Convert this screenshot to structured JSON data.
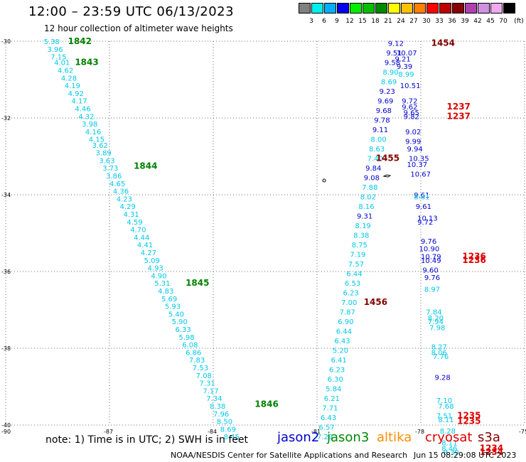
{
  "header": {
    "title": "12:00 – 23:59 UTC 06/13/2023",
    "subtitle": "12 hour collection of altimeter wave heights"
  },
  "color_scale": {
    "unit": "(ft)",
    "bins": [
      {
        "label": "3",
        "color": "#808080"
      },
      {
        "label": "6",
        "color": "#00eeee"
      },
      {
        "label": "9",
        "color": "#00b0ff"
      },
      {
        "label": "12",
        "color": "#0000ee"
      },
      {
        "label": "15",
        "color": "#00ee00"
      },
      {
        "label": "18",
        "color": "#00c000"
      },
      {
        "label": "21",
        "color": "#008800"
      },
      {
        "label": "24",
        "color": "#ffff00"
      },
      {
        "label": "27",
        "color": "#ffc000"
      },
      {
        "label": "30",
        "color": "#ff8000"
      },
      {
        "label": "33",
        "color": "#ff0000"
      },
      {
        "label": "36",
        "color": "#c00000"
      },
      {
        "label": "39",
        "color": "#880000"
      },
      {
        "label": "42",
        "color": "#b040b0"
      },
      {
        "label": "45",
        "color": "#d090e0"
      },
      {
        "label": "70",
        "color": "#eeaaee"
      },
      {
        "label": "",
        "color": "#000000"
      }
    ]
  },
  "map": {
    "lat_labels": [
      "-30",
      "-32",
      "-34",
      "-36",
      "-38",
      "-40"
    ],
    "lon_labels": [
      "-90",
      "-87",
      "-84",
      "-81",
      "-78",
      "-75"
    ],
    "colors": {
      "cyan": "#00c8e8",
      "blue": "#0000cc",
      "green": "#008000",
      "red": "#dd0000",
      "darkred": "#800000"
    }
  },
  "chart_data": {
    "type": "scatter",
    "title": "12:00 – 23:59 UTC 06/13/2023",
    "xlim": [
      -90,
      -75
    ],
    "ylim": [
      -40,
      -30
    ],
    "tracks": [
      {
        "mission": "jason3",
        "points": [
          {
            "lon": -88.9,
            "lat": -30.0,
            "swh": "5.38"
          },
          {
            "lon": -88.8,
            "lat": -30.2,
            "swh": "3.96"
          },
          {
            "lon": -88.7,
            "lat": -30.4,
            "swh": "7.15"
          },
          {
            "lon": -88.6,
            "lat": -30.55,
            "swh": "4.01"
          },
          {
            "lon": -88.5,
            "lat": -30.75,
            "swh": "4.62"
          },
          {
            "lon": -88.4,
            "lat": -30.95,
            "swh": "4.28"
          },
          {
            "lon": -88.3,
            "lat": -31.15,
            "swh": "4.19"
          },
          {
            "lon": -88.2,
            "lat": -31.35,
            "swh": "4.92"
          },
          {
            "lon": -88.1,
            "lat": -31.55,
            "swh": "4.17"
          },
          {
            "lon": -88.0,
            "lat": -31.75,
            "swh": "4.46"
          },
          {
            "lon": -87.9,
            "lat": -31.95,
            "swh": "4.32"
          },
          {
            "lon": -87.8,
            "lat": -32.15,
            "swh": "3.98"
          },
          {
            "lon": -87.7,
            "lat": -32.35,
            "swh": "4.16"
          },
          {
            "lon": -87.6,
            "lat": -32.55,
            "swh": "4.15"
          },
          {
            "lon": -87.5,
            "lat": -32.7,
            "swh": "3.62"
          },
          {
            "lon": -87.4,
            "lat": -32.9,
            "swh": "3.89"
          },
          {
            "lon": -87.3,
            "lat": -33.1,
            "swh": "3.63"
          },
          {
            "lon": -87.2,
            "lat": -33.3,
            "swh": "3.73"
          },
          {
            "lon": -87.1,
            "lat": -33.5,
            "swh": "3.86"
          },
          {
            "lon": -87.0,
            "lat": -33.7,
            "swh": "4.65"
          },
          {
            "lon": -86.9,
            "lat": -33.9,
            "swh": "4.36"
          },
          {
            "lon": -86.8,
            "lat": -34.1,
            "swh": "4.23"
          },
          {
            "lon": -86.7,
            "lat": -34.3,
            "swh": "4.29"
          },
          {
            "lon": -86.6,
            "lat": -34.5,
            "swh": "4.31"
          },
          {
            "lon": -86.5,
            "lat": -34.7,
            "swh": "4.59"
          },
          {
            "lon": -86.4,
            "lat": -34.9,
            "swh": "4.70"
          },
          {
            "lon": -86.3,
            "lat": -35.1,
            "swh": "4.44"
          },
          {
            "lon": -86.2,
            "lat": -35.3,
            "swh": "4.41"
          },
          {
            "lon": -86.1,
            "lat": -35.5,
            "swh": "4.27"
          },
          {
            "lon": -86.0,
            "lat": -35.7,
            "swh": "5.09"
          },
          {
            "lon": -85.9,
            "lat": -35.9,
            "swh": "4.93"
          },
          {
            "lon": -85.8,
            "lat": -36.1,
            "swh": "4.90"
          },
          {
            "lon": -85.7,
            "lat": -36.3,
            "swh": "5.31"
          },
          {
            "lon": -85.6,
            "lat": -36.5,
            "swh": "4.83"
          },
          {
            "lon": -85.5,
            "lat": -36.7,
            "swh": "5.69"
          },
          {
            "lon": -85.4,
            "lat": -36.9,
            "swh": "5.93"
          },
          {
            "lon": -85.3,
            "lat": -37.1,
            "swh": "5.40"
          },
          {
            "lon": -85.2,
            "lat": -37.3,
            "swh": "5.90"
          },
          {
            "lon": -85.1,
            "lat": -37.5,
            "swh": "6.33"
          },
          {
            "lon": -85.0,
            "lat": -37.7,
            "swh": "5.98"
          },
          {
            "lon": -84.9,
            "lat": -37.9,
            "swh": "6.08"
          },
          {
            "lon": -84.8,
            "lat": -38.1,
            "swh": "6.86"
          },
          {
            "lon": -84.7,
            "lat": -38.3,
            "swh": "7.83"
          },
          {
            "lon": -84.6,
            "lat": -38.5,
            "swh": "7.53"
          },
          {
            "lon": -84.5,
            "lat": -38.7,
            "swh": "7.08"
          },
          {
            "lon": -84.4,
            "lat": -38.9,
            "swh": "7.31"
          },
          {
            "lon": -84.3,
            "lat": -39.1,
            "swh": "7.17"
          },
          {
            "lon": -84.2,
            "lat": -39.3,
            "swh": "7.34"
          },
          {
            "lon": -84.1,
            "lat": -39.5,
            "swh": "8.38"
          },
          {
            "lon": -84.0,
            "lat": -39.7,
            "swh": "7.96"
          },
          {
            "lon": -83.9,
            "lat": -39.9,
            "swh": "8.50"
          },
          {
            "lon": -83.8,
            "lat": -40.1,
            "swh": "8.69"
          },
          {
            "lon": -83.7,
            "lat": -40.3,
            "swh": "8.45"
          }
        ]
      },
      {
        "mission": "jason3",
        "points": [
          {
            "lon": -81.0,
            "lat": -40.3,
            "swh": "7.29"
          },
          {
            "lon": -80.95,
            "lat": -40.05,
            "swh": "6.57"
          },
          {
            "lon": -80.9,
            "lat": -39.8,
            "swh": "6.43"
          },
          {
            "lon": -80.85,
            "lat": -39.55,
            "swh": "7.71"
          },
          {
            "lon": -80.8,
            "lat": -39.3,
            "swh": "6.21"
          },
          {
            "lon": -80.75,
            "lat": -39.05,
            "swh": "5.84"
          },
          {
            "lon": -80.7,
            "lat": -38.8,
            "swh": "6.30"
          },
          {
            "lon": -80.65,
            "lat": -38.55,
            "swh": "6.23"
          },
          {
            "lon": -80.6,
            "lat": -38.3,
            "swh": "6.41"
          },
          {
            "lon": -80.55,
            "lat": -38.05,
            "swh": "5.20"
          },
          {
            "lon": -80.5,
            "lat": -37.8,
            "swh": "6.43"
          },
          {
            "lon": -80.45,
            "lat": -37.55,
            "swh": "6.44"
          },
          {
            "lon": -80.4,
            "lat": -37.3,
            "swh": "6.90"
          },
          {
            "lon": -80.35,
            "lat": -37.05,
            "swh": "7.87"
          },
          {
            "lon": -80.3,
            "lat": -36.8,
            "swh": "7.00"
          },
          {
            "lon": -80.25,
            "lat": -36.55,
            "swh": "6.23"
          },
          {
            "lon": -80.2,
            "lat": -36.3,
            "swh": "6.53"
          },
          {
            "lon": -80.15,
            "lat": -36.05,
            "swh": "6.44"
          },
          {
            "lon": -80.1,
            "lat": -35.8,
            "swh": "7.57"
          },
          {
            "lon": -80.05,
            "lat": -35.55,
            "swh": "7.19"
          },
          {
            "lon": -80.0,
            "lat": -35.3,
            "swh": "8.75"
          },
          {
            "lon": -79.95,
            "lat": -35.05,
            "swh": "8.38"
          },
          {
            "lon": -79.9,
            "lat": -34.8,
            "swh": "8.19"
          },
          {
            "lon": -79.85,
            "lat": -34.55,
            "swh": "9.31"
          },
          {
            "lon": -79.8,
            "lat": -34.3,
            "swh": "8.16"
          },
          {
            "lon": -79.75,
            "lat": -34.05,
            "swh": "8.02"
          },
          {
            "lon": -79.7,
            "lat": -33.8,
            "swh": "7.88"
          },
          {
            "lon": -79.65,
            "lat": -33.55,
            "swh": "9.08"
          },
          {
            "lon": -79.6,
            "lat": -33.3,
            "swh": "9.84"
          },
          {
            "lon": -79.55,
            "lat": -33.05,
            "swh": "7.40"
          },
          {
            "lon": -79.5,
            "lat": -32.8,
            "swh": "8.63"
          },
          {
            "lon": -79.45,
            "lat": -32.55,
            "swh": "8.00"
          },
          {
            "lon": -79.4,
            "lat": -32.3,
            "swh": "9.11"
          },
          {
            "lon": -79.35,
            "lat": -32.05,
            "swh": "9.78"
          },
          {
            "lon": -79.3,
            "lat": -31.8,
            "swh": "9.68"
          },
          {
            "lon": -79.25,
            "lat": -31.55,
            "swh": "9.69"
          },
          {
            "lon": -79.2,
            "lat": -31.3,
            "swh": "9.23"
          },
          {
            "lon": -79.15,
            "lat": -31.05,
            "swh": "8.69"
          },
          {
            "lon": -79.1,
            "lat": -30.8,
            "swh": "8.90"
          },
          {
            "lon": -79.05,
            "lat": -30.55,
            "swh": "9.58"
          },
          {
            "lon": -79.0,
            "lat": -30.3,
            "swh": "9.51"
          },
          {
            "lon": -78.95,
            "lat": -30.05,
            "swh": "9.12"
          }
        ]
      },
      {
        "mission": "jason2",
        "points": [
          {
            "lon": -78.7,
            "lat": -30.3,
            "swh": "10.07"
          },
          {
            "lon": -78.75,
            "lat": -30.45,
            "swh": "9.21"
          },
          {
            "lon": -78.7,
            "lat": -30.65,
            "swh": "9.39"
          },
          {
            "lon": -78.65,
            "lat": -30.85,
            "swh": "8.99"
          },
          {
            "lon": -78.6,
            "lat": -31.15,
            "swh": "10.51"
          },
          {
            "lon": -78.55,
            "lat": -31.55,
            "swh": "9.72"
          },
          {
            "lon": -78.55,
            "lat": -31.7,
            "swh": "9.62"
          },
          {
            "lon": -78.5,
            "lat": -31.85,
            "swh": "9.65"
          },
          {
            "lon": -78.5,
            "lat": -31.95,
            "swh": "9.82"
          },
          {
            "lon": -78.45,
            "lat": -32.35,
            "swh": "9.02"
          },
          {
            "lon": -78.45,
            "lat": -32.6,
            "swh": "9.99"
          },
          {
            "lon": -78.4,
            "lat": -32.8,
            "swh": "9.94"
          },
          {
            "lon": -78.35,
            "lat": -33.05,
            "swh": "10.35"
          },
          {
            "lon": -78.4,
            "lat": -33.2,
            "swh": "10.37"
          },
          {
            "lon": -78.3,
            "lat": -33.45,
            "swh": "10.67"
          },
          {
            "lon": -78.2,
            "lat": -34.0,
            "swh": "9.61"
          },
          {
            "lon": -78.2,
            "lat": -34.05,
            "swh": "8.61"
          },
          {
            "lon": -78.15,
            "lat": -34.3,
            "swh": "9.61"
          },
          {
            "lon": -78.1,
            "lat": -34.6,
            "swh": "10.13"
          },
          {
            "lon": -78.1,
            "lat": -34.7,
            "swh": "9.72"
          },
          {
            "lon": -78.0,
            "lat": -35.2,
            "swh": "9.76"
          },
          {
            "lon": -78.05,
            "lat": -35.4,
            "swh": "10.90"
          },
          {
            "lon": -78.0,
            "lat": -35.6,
            "swh": "10.79"
          },
          {
            "lon": -78.0,
            "lat": -35.7,
            "swh": "10.49"
          },
          {
            "lon": -77.95,
            "lat": -35.95,
            "swh": "9.60"
          },
          {
            "lon": -77.9,
            "lat": -36.15,
            "swh": "9.76"
          }
        ]
      },
      {
        "mission": "jason3",
        "points": [
          {
            "lon": -77.9,
            "lat": -36.45,
            "swh": "8.97"
          },
          {
            "lon": -77.85,
            "lat": -37.05,
            "swh": "7.84"
          },
          {
            "lon": -77.8,
            "lat": -37.2,
            "swh": "8.20"
          },
          {
            "lon": -77.8,
            "lat": -37.3,
            "swh": "7.94"
          },
          {
            "lon": -77.75,
            "lat": -37.45,
            "swh": "7.98"
          },
          {
            "lon": -77.7,
            "lat": -37.95,
            "swh": "8.27"
          },
          {
            "lon": -77.7,
            "lat": -38.1,
            "swh": "8.06"
          },
          {
            "lon": -77.65,
            "lat": -38.2,
            "swh": "7.76"
          },
          {
            "lon": -77.6,
            "lat": -38.75,
            "swh": "9.28"
          },
          {
            "lon": -77.55,
            "lat": -39.35,
            "swh": "7.10"
          },
          {
            "lon": -77.5,
            "lat": -39.5,
            "swh": "7.68"
          },
          {
            "lon": -77.55,
            "lat": -39.75,
            "swh": "7.51"
          },
          {
            "lon": -77.5,
            "lat": -39.85,
            "swh": "8.11"
          },
          {
            "lon": -77.45,
            "lat": -40.15,
            "swh": "8.28"
          },
          {
            "lon": -77.4,
            "lat": -40.45,
            "swh": "8.11"
          },
          {
            "lon": -77.4,
            "lat": -40.6,
            "swh": "8.46"
          },
          {
            "lon": -77.35,
            "lat": -40.7,
            "swh": "8.39"
          }
        ]
      }
    ],
    "time_labels": [
      {
        "text": "1842",
        "lon": -88.2,
        "lat": -30.0,
        "color": "green"
      },
      {
        "text": "1843",
        "lon": -88.0,
        "lat": -30.55,
        "color": "green"
      },
      {
        "text": "1844",
        "lon": -86.3,
        "lat": -33.25,
        "color": "green"
      },
      {
        "text": "1845",
        "lon": -84.8,
        "lat": -36.3,
        "color": "green"
      },
      {
        "text": "1846",
        "lon": -82.8,
        "lat": -39.45,
        "color": "green"
      },
      {
        "text": "1454",
        "lon": -77.7,
        "lat": -30.05,
        "color": "darkred"
      },
      {
        "text": "1455",
        "lon": -79.3,
        "lat": -33.05,
        "color": "darkred"
      },
      {
        "text": "1456",
        "lon": -79.65,
        "lat": -36.8,
        "color": "darkred"
      },
      {
        "text": "1237",
        "lon": -77.25,
        "lat": -31.7,
        "color": "red"
      },
      {
        "text": "1237",
        "lon": -77.25,
        "lat": -31.95,
        "color": "red"
      },
      {
        "text": "1236",
        "lon": -76.8,
        "lat": -35.6,
        "color": "red"
      },
      {
        "text": "1236",
        "lon": -76.8,
        "lat": -35.7,
        "color": "red"
      },
      {
        "text": "1235",
        "lon": -76.95,
        "lat": -39.75,
        "color": "red"
      },
      {
        "text": "1235",
        "lon": -76.95,
        "lat": -39.9,
        "color": "red"
      },
      {
        "text": "1234",
        "lon": -76.3,
        "lat": -40.6,
        "color": "red"
      },
      {
        "text": "1234",
        "lon": -76.3,
        "lat": -40.7,
        "color": "red"
      }
    ]
  },
  "note": "note:  1) Time is in UTC; 2) SWH is in feet",
  "missions": [
    {
      "name": "jason2",
      "color": "#0000cc"
    },
    {
      "name": "jason3",
      "color": "#008800"
    },
    {
      "name": "altika",
      "color": "#ff8c00"
    },
    {
      "name": "cryosat",
      "color": "#dd0000"
    },
    {
      "name": "s3a",
      "color": "#880000"
    }
  ],
  "footer": {
    "credit": "NOAA/NESDIS Center for Satellite Applications and Research",
    "timestamp": "Jun 15 08:29:08 UTC 2023"
  }
}
